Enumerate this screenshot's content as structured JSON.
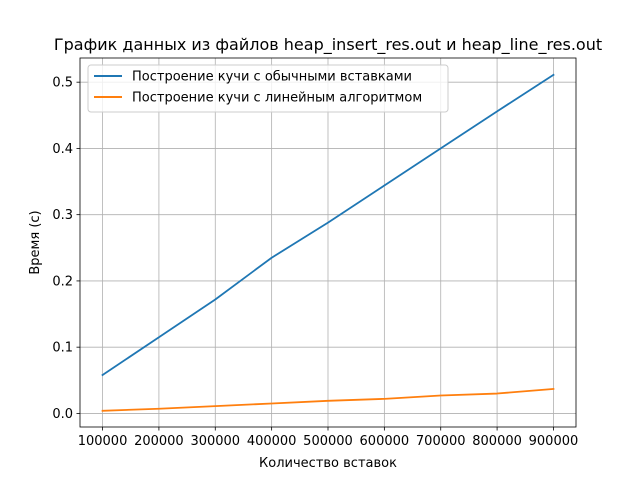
{
  "chart_data": {
    "type": "line",
    "title": "График данных из файлов heap_insert_res.out и heap_line_res.out",
    "xlabel": "Количество вставок",
    "ylabel": "Время (с)",
    "x": [
      100000,
      200000,
      300000,
      400000,
      500000,
      600000,
      700000,
      800000,
      900000
    ],
    "xlim": [
      60000,
      940000
    ],
    "ylim": [
      -0.0205,
      0.5365
    ],
    "xticks": [
      100000,
      200000,
      300000,
      400000,
      500000,
      600000,
      700000,
      800000,
      900000
    ],
    "yticks": [
      0.0,
      0.1,
      0.2,
      0.3,
      0.4,
      0.5
    ],
    "xtick_labels": [
      "100000",
      "200000",
      "300000",
      "400000",
      "500000",
      "600000",
      "700000",
      "800000",
      "900000"
    ],
    "ytick_labels": [
      "0.0",
      "0.1",
      "0.2",
      "0.3",
      "0.4",
      "0.5"
    ],
    "grid": true,
    "legend_position": "top-left",
    "series": [
      {
        "name": "Построение кучи с обычными вставками",
        "color": "#1f77b4",
        "values": [
          0.058,
          0.115,
          0.172,
          0.235,
          0.288,
          0.344,
          0.4,
          0.456,
          0.511
        ]
      },
      {
        "name": "Построение кучи с линейным алгоритмом",
        "color": "#ff7f0e",
        "values": [
          0.004,
          0.007,
          0.011,
          0.015,
          0.019,
          0.022,
          0.027,
          0.03,
          0.037
        ]
      }
    ]
  }
}
